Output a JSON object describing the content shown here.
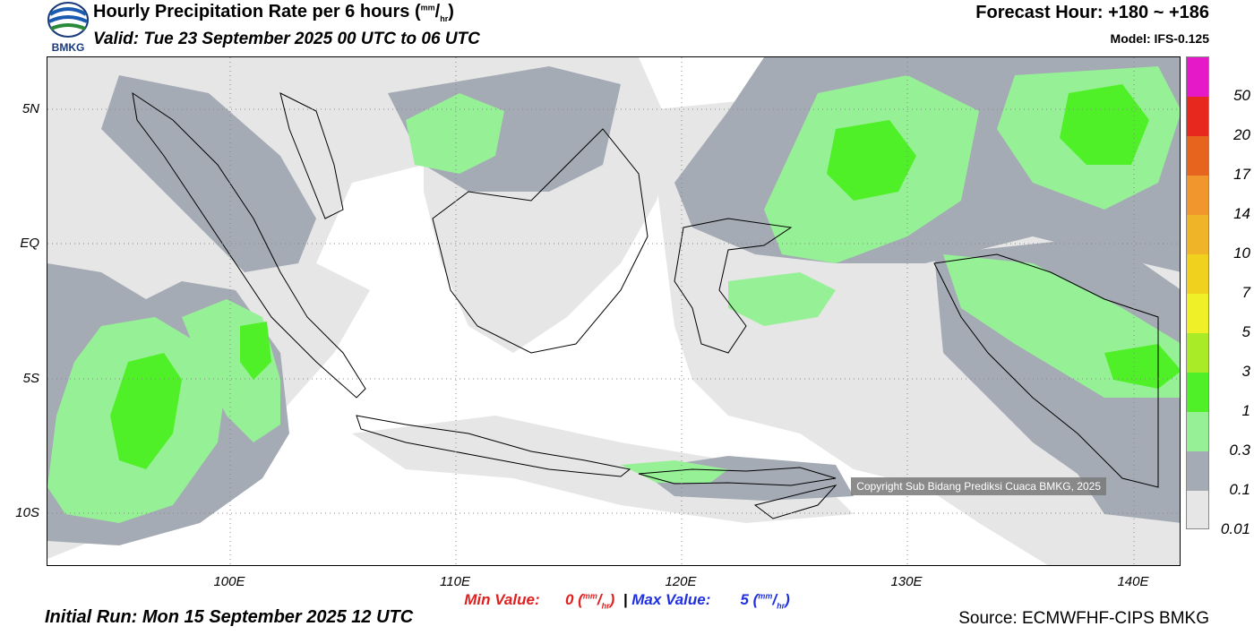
{
  "header": {
    "title": "Hourly Precipitation Rate per 6 hours",
    "title_unit_num": "mm",
    "title_unit_den": "hr",
    "valid": "Valid: Tue 23 September 2025 00 UTC to 06 UTC",
    "forecast_hour": "Forecast Hour: +180 ~ +186",
    "model": "Model: IFS-0.125",
    "logo_text": "BMKG"
  },
  "map": {
    "lat_labels": [
      "5N",
      "EQ",
      "5S",
      "10S"
    ],
    "lon_labels": [
      "100E",
      "110E",
      "120E",
      "130E",
      "140E"
    ],
    "copyright": "Copyright Sub Bidang Prediksi Cuaca BMKG, 2025",
    "colors": {
      "p001": "#e6e6e6",
      "p01": "#b4b4b4",
      "p03": "#a0a8b4",
      "p1": "#96f096",
      "p3": "#50f028"
    }
  },
  "legend": {
    "labels": [
      "50",
      "20",
      "17",
      "14",
      "10",
      "7",
      "5",
      "3",
      "1",
      "0.3",
      "0.1",
      "0.01"
    ],
    "colors": [
      "#e619c8",
      "#e6281e",
      "#e6641e",
      "#f0962d",
      "#f0b428",
      "#f0d21e",
      "#f0f028",
      "#aaeb28",
      "#50f028",
      "#96f096",
      "#a5abb4",
      "#e6e6e6"
    ]
  },
  "footer": {
    "min_label": "Min Value:",
    "min_value": "0",
    "max_label": "Max Value:",
    "max_value": "5",
    "unit_num": "mm",
    "unit_den": "hr",
    "separator": "|",
    "initial_run": "Initial Run: Mon 15 September 2025 12 UTC",
    "source": "Source: ECMWFHF-CIPS BMKG"
  }
}
